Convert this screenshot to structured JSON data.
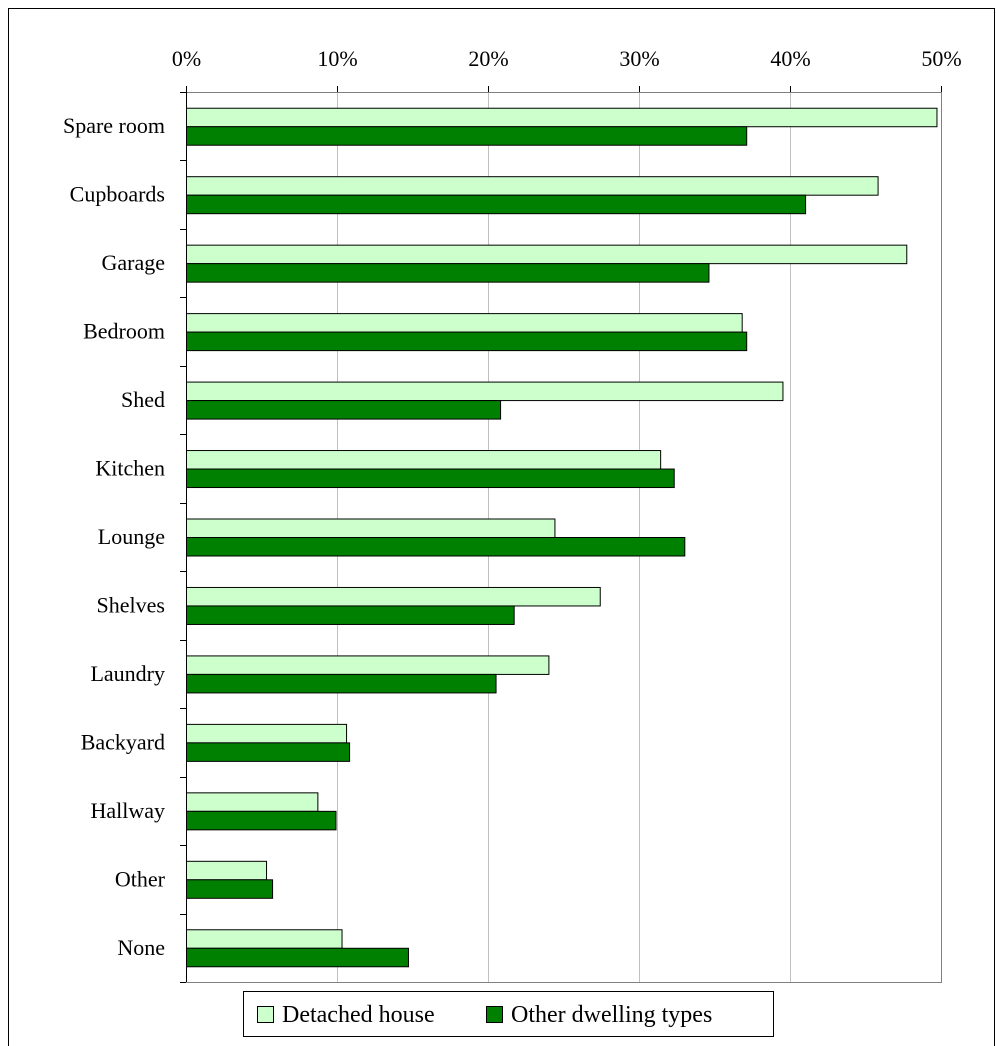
{
  "chart_data": {
    "type": "bar",
    "orientation": "horizontal",
    "categories": [
      "Spare room",
      "Cupboards",
      "Garage",
      "Bedroom",
      "Shed",
      "Kitchen",
      "Lounge",
      "Shelves",
      "Laundry",
      "Backyard",
      "Hallway",
      "Other",
      "None"
    ],
    "series": [
      {
        "name": "Detached house",
        "color": "#ccffcc",
        "values": [
          49.7,
          45.8,
          47.7,
          36.8,
          39.5,
          31.4,
          24.4,
          27.4,
          24.0,
          10.6,
          8.7,
          5.3,
          10.3
        ]
      },
      {
        "name": "Other dwelling types",
        "color": "#008000",
        "values": [
          37.1,
          41.0,
          34.6,
          37.1,
          20.8,
          32.3,
          33.0,
          21.7,
          20.5,
          10.8,
          9.9,
          5.7,
          14.7
        ]
      }
    ],
    "xlim": [
      0,
      50
    ],
    "x_ticks": [
      "0%",
      "10%",
      "20%",
      "30%",
      "40%",
      "50%"
    ],
    "x_axis_position": "top",
    "grid": "vertical",
    "legend_position": "bottom"
  }
}
